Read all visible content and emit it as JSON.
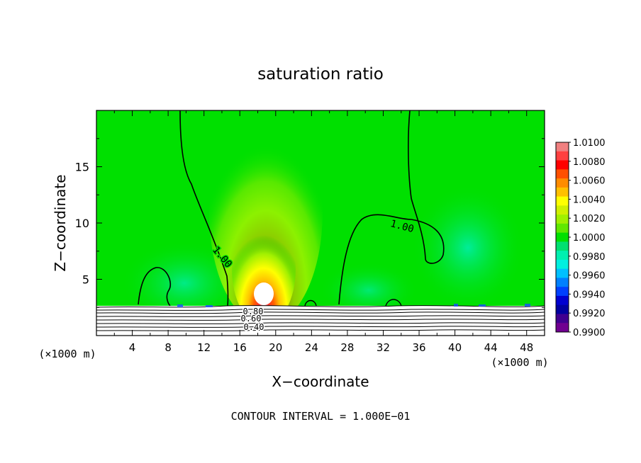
{
  "chart_data": {
    "type": "heatmap",
    "title": "saturation ratio",
    "xlabel": "X−coordinate",
    "ylabel": "Z−coordinate",
    "x_unit_label": "(×1000 m)",
    "y_unit_label": "(×1000 m)",
    "xlim": [
      0,
      50
    ],
    "ylim": [
      0,
      20
    ],
    "x_ticks": [
      4,
      8,
      12,
      16,
      20,
      24,
      28,
      32,
      36,
      40,
      44,
      48
    ],
    "y_ticks": [
      5,
      10,
      15
    ],
    "colorbar": {
      "min": 0.99,
      "max": 1.01,
      "labels": [
        "1.0100",
        "1.0080",
        "1.0060",
        "1.0040",
        "1.0020",
        "1.0000",
        "0.9980",
        "0.9960",
        "0.9940",
        "0.9920",
        "0.9900"
      ],
      "colors": [
        "#f08080",
        "#ff4040",
        "#ff0000",
        "#ff5000",
        "#ff8c00",
        "#ffc000",
        "#ffff00",
        "#d0f000",
        "#a0f000",
        "#60e800",
        "#00e000",
        "#00e070",
        "#00f0b0",
        "#00f0e0",
        "#00c0ff",
        "#0080ff",
        "#0040ff",
        "#0000d0",
        "#0000a0",
        "#400090",
        "#700090"
      ]
    },
    "contour_labels": [
      "1.00",
      "1.00",
      "0.80",
      "0.60",
      "0.40"
    ],
    "footer": "CONTOUR INTERVAL =  1.000E−01"
  }
}
